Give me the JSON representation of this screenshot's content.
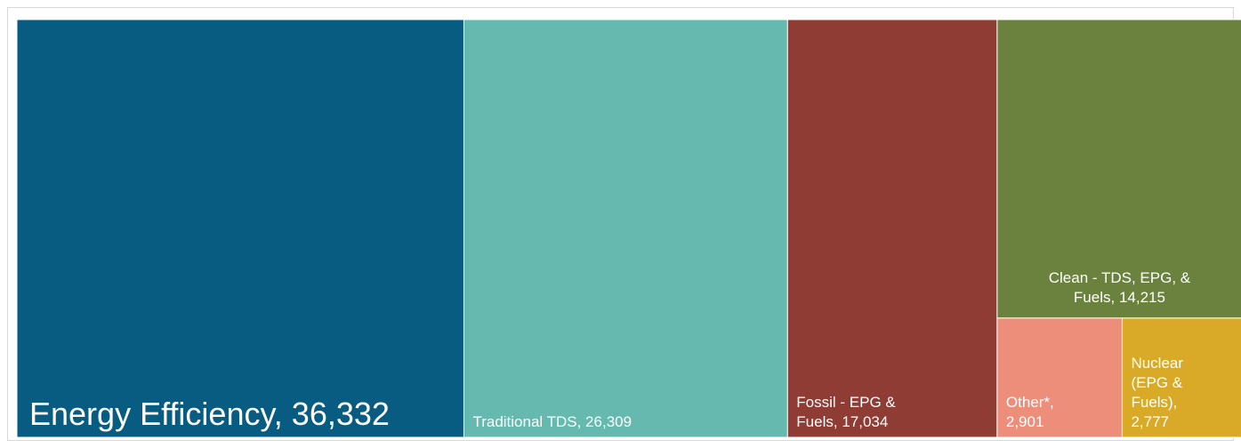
{
  "chart_data": {
    "type": "treemap",
    "title": "",
    "items": [
      {
        "label": "Energy Efficiency, 36,332",
        "lines": [
          "Energy Efficiency, 36,332"
        ],
        "value": 36332,
        "color": "#085C82"
      },
      {
        "label": "Traditional TDS, 26,309",
        "lines": [
          "Traditional TDS, 26,309"
        ],
        "value": 26309,
        "color": "#65B9AF"
      },
      {
        "label": "Fossil - EPG & Fuels, 17,034",
        "lines": [
          "Fossil - EPG &",
          "Fuels, 17,034"
        ],
        "value": 17034,
        "color": "#8F3C34"
      },
      {
        "label": "Clean - TDS, EPG, & Fuels, 14,215",
        "lines": [
          "Clean - TDS, EPG, &",
          "Fuels, 14,215"
        ],
        "value": 14215,
        "color": "#6A823D"
      },
      {
        "label": "Other*, 2,901",
        "lines": [
          "Other*,",
          "2,901"
        ],
        "value": 2901,
        "color": "#ED8E7B"
      },
      {
        "label": "Nuclear (EPG & Fuels), 2,777",
        "lines": [
          "Nuclear",
          "(EPG &",
          "Fuels),",
          "2,777"
        ],
        "value": 2777,
        "color": "#D8AA28"
      }
    ]
  }
}
